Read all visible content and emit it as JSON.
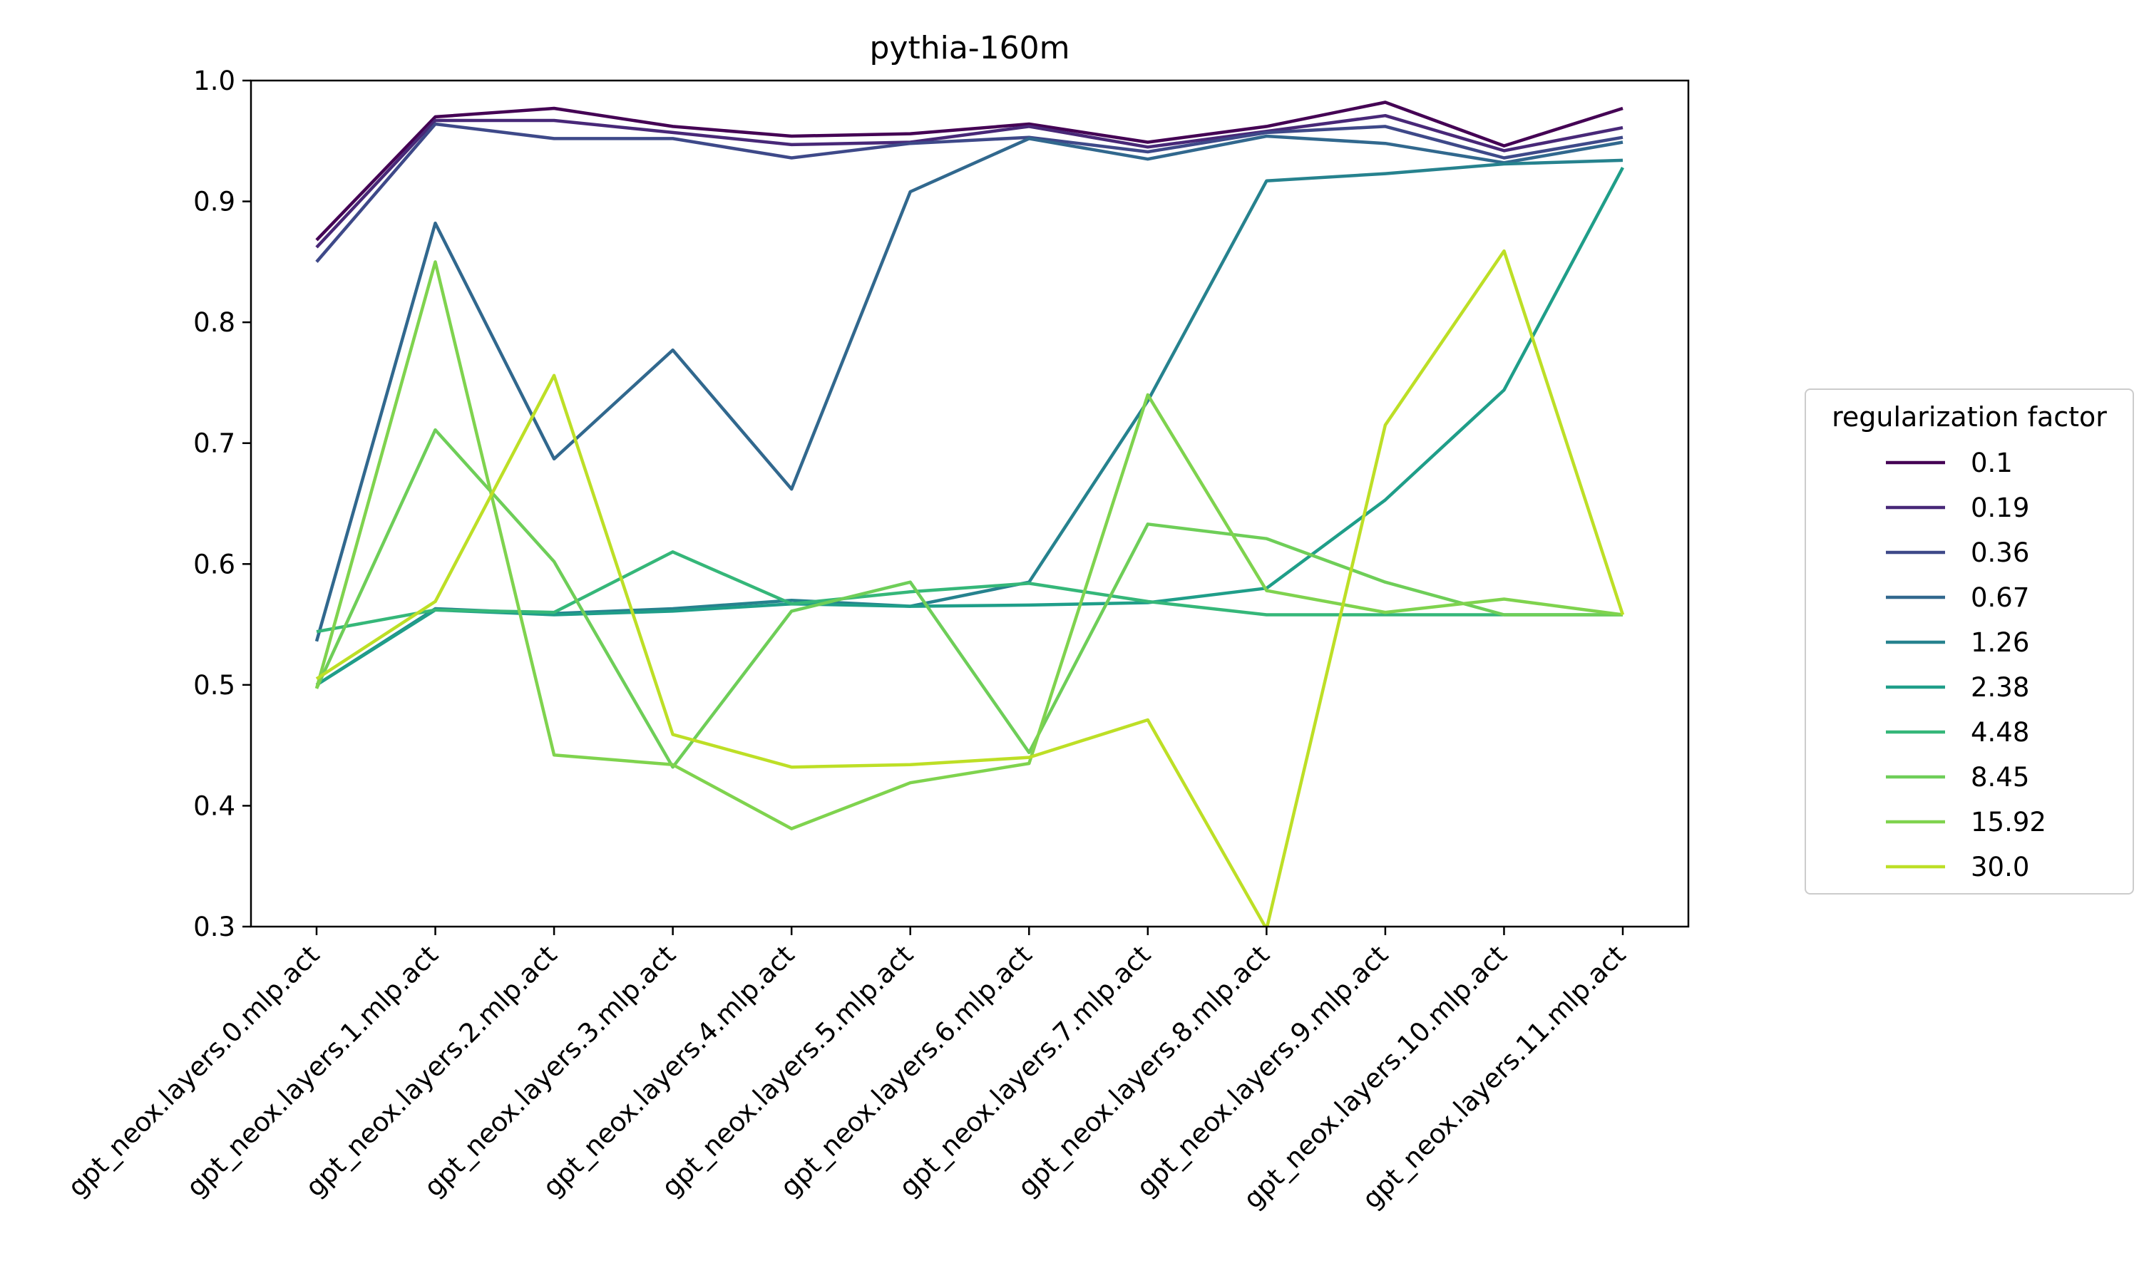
{
  "chart_data": {
    "type": "line",
    "title": "pythia-160m",
    "xlabel": "",
    "ylabel": "",
    "ylim": [
      0.3,
      1.0
    ],
    "yticks": [
      "0.3",
      "0.4",
      "0.5",
      "0.6",
      "0.7",
      "0.8",
      "0.9",
      "1.0"
    ],
    "grid": false,
    "legend_placement": "outside right",
    "legend_title": "regularization factor",
    "categories": [
      "gpt_neox.layers.0.mlp.act",
      "gpt_neox.layers.1.mlp.act",
      "gpt_neox.layers.2.mlp.act",
      "gpt_neox.layers.3.mlp.act",
      "gpt_neox.layers.4.mlp.act",
      "gpt_neox.layers.5.mlp.act",
      "gpt_neox.layers.6.mlp.act",
      "gpt_neox.layers.7.mlp.act",
      "gpt_neox.layers.8.mlp.act",
      "gpt_neox.layers.9.mlp.act",
      "gpt_neox.layers.10.mlp.act",
      "gpt_neox.layers.11.mlp.act"
    ],
    "series": [
      {
        "name": "0.1",
        "color": "#440154",
        "values": [
          0.868,
          0.97,
          0.977,
          0.962,
          0.954,
          0.956,
          0.964,
          0.949,
          0.962,
          0.982,
          0.946,
          0.977
        ]
      },
      {
        "name": "0.19",
        "color": "#482878",
        "values": [
          0.862,
          0.967,
          0.967,
          0.957,
          0.947,
          0.949,
          0.962,
          0.945,
          0.958,
          0.971,
          0.942,
          0.961
        ]
      },
      {
        "name": "0.36",
        "color": "#3e4989",
        "values": [
          0.85,
          0.964,
          0.952,
          0.952,
          0.936,
          0.948,
          0.953,
          0.941,
          0.957,
          0.962,
          0.936,
          0.953
        ]
      },
      {
        "name": "0.67",
        "color": "#31688e",
        "values": [
          0.536,
          0.882,
          0.687,
          0.777,
          0.662,
          0.908,
          0.952,
          0.935,
          0.954,
          0.948,
          0.932,
          0.949
        ]
      },
      {
        "name": "1.26",
        "color": "#26828e",
        "values": [
          0.5,
          0.563,
          0.559,
          0.563,
          0.57,
          0.565,
          0.585,
          0.735,
          0.917,
          0.923,
          0.931,
          0.934
        ]
      },
      {
        "name": "2.38",
        "color": "#1f9e89",
        "values": [
          0.5,
          0.562,
          0.558,
          0.561,
          0.567,
          0.565,
          0.566,
          0.568,
          0.58,
          0.653,
          0.744,
          0.928
        ]
      },
      {
        "name": "4.48",
        "color": "#35b779",
        "values": [
          0.544,
          0.562,
          0.56,
          0.61,
          0.567,
          0.577,
          0.584,
          0.569,
          0.558,
          0.558,
          0.558,
          0.558
        ]
      },
      {
        "name": "8.45",
        "color": "#6ece58",
        "values": [
          0.497,
          0.711,
          0.602,
          0.432,
          0.561,
          0.585,
          0.444,
          0.633,
          0.621,
          0.585,
          0.558,
          0.558
        ]
      },
      {
        "name": "15.92",
        "color": "#7fd34e",
        "values": [
          0.497,
          0.85,
          0.442,
          0.434,
          0.381,
          0.419,
          0.435,
          0.74,
          0.578,
          0.56,
          0.571,
          0.558
        ]
      },
      {
        "name": "30.0",
        "color": "#bddf26",
        "values": [
          0.505,
          0.569,
          0.756,
          0.459,
          0.432,
          0.434,
          0.44,
          0.471,
          0.298,
          0.715,
          0.859,
          0.558
        ]
      }
    ]
  }
}
